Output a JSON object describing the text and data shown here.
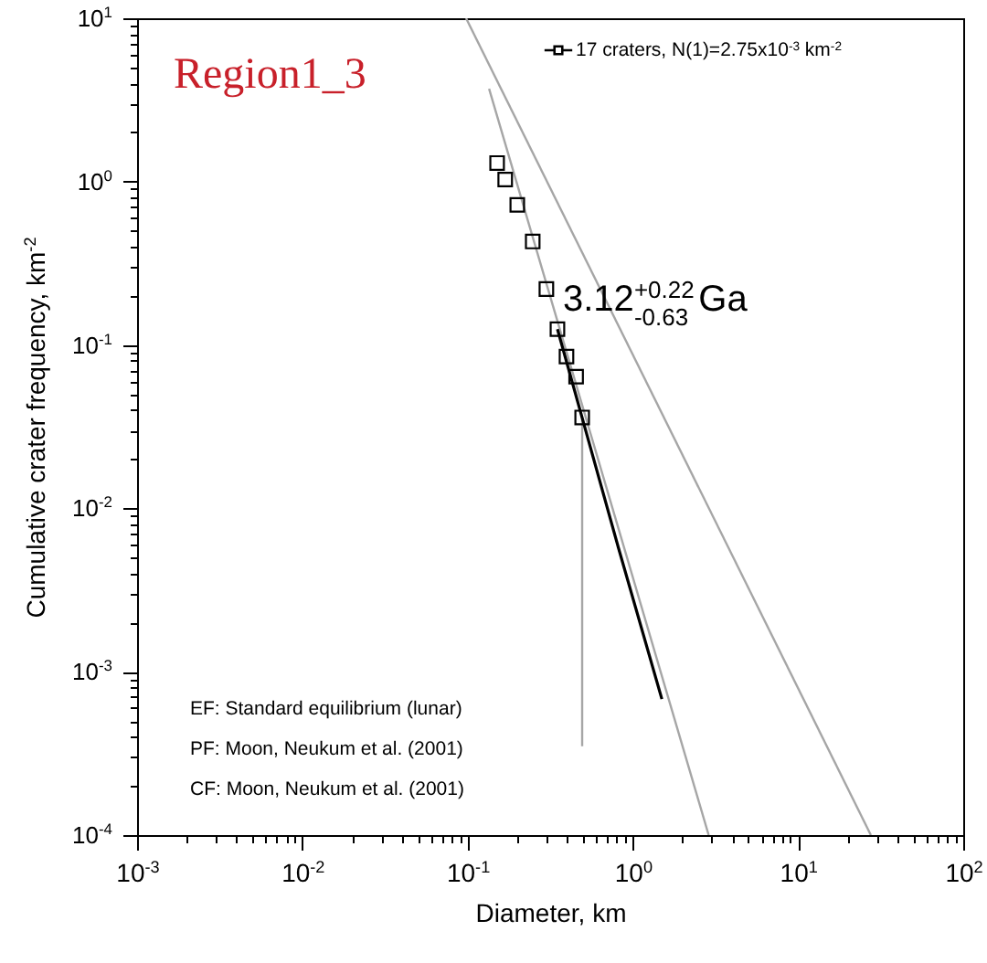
{
  "chart_data": {
    "type": "scatter",
    "xlabel": "Diameter, km",
    "ylabel": "Cumulative crater frequency, km$^{-2}$",
    "log": "xy",
    "xlim": [
      0.001,
      100
    ],
    "ylim": [
      0.0001,
      10
    ],
    "xticks": [
      {
        "value": 0.001,
        "label": "10$^{-3}$"
      },
      {
        "value": 0.002,
        "label": null
      },
      {
        "value": 0.003,
        "label": null
      },
      {
        "value": 0.004,
        "label": null
      },
      {
        "value": 0.005,
        "label": null
      },
      {
        "value": 0.006,
        "label": null
      },
      {
        "value": 0.007,
        "label": null
      },
      {
        "value": 0.008,
        "label": null
      },
      {
        "value": 0.009,
        "label": null
      },
      {
        "value": 0.01,
        "label": "10$^{-2}$"
      },
      {
        "value": 0.02,
        "label": null
      },
      {
        "value": 0.03,
        "label": null
      },
      {
        "value": 0.04,
        "label": null
      },
      {
        "value": 0.05,
        "label": null
      },
      {
        "value": 0.06,
        "label": null
      },
      {
        "value": 0.07,
        "label": null
      },
      {
        "value": 0.08,
        "label": null
      },
      {
        "value": 0.09,
        "label": null
      },
      {
        "value": 0.1,
        "label": "10$^{-1}$"
      },
      {
        "value": 0.2,
        "label": null
      },
      {
        "value": 0.3,
        "label": null
      },
      {
        "value": 0.4,
        "label": null
      },
      {
        "value": 0.5,
        "label": null
      },
      {
        "value": 0.6,
        "label": null
      },
      {
        "value": 0.7,
        "label": null
      },
      {
        "value": 0.8,
        "label": null
      },
      {
        "value": 0.9,
        "label": null
      },
      {
        "value": 1,
        "label": "10$^{0}$"
      },
      {
        "value": 2,
        "label": null
      },
      {
        "value": 3,
        "label": null
      },
      {
        "value": 4,
        "label": null
      },
      {
        "value": 5,
        "label": null
      },
      {
        "value": 6,
        "label": null
      },
      {
        "value": 7,
        "label": null
      },
      {
        "value": 8,
        "label": null
      },
      {
        "value": 9,
        "label": null
      },
      {
        "value": 10,
        "label": "10$^{1}$"
      },
      {
        "value": 20,
        "label": null
      },
      {
        "value": 30,
        "label": null
      },
      {
        "value": 40,
        "label": null
      },
      {
        "value": 50,
        "label": null
      },
      {
        "value": 60,
        "label": null
      },
      {
        "value": 70,
        "label": null
      },
      {
        "value": 80,
        "label": null
      },
      {
        "value": 90,
        "label": null
      },
      {
        "value": 100,
        "label": "10$^{2}$"
      }
    ],
    "yticks": [
      {
        "value": 0.0001,
        "label": "10$^{-4}$"
      },
      {
        "value": 0.0002,
        "label": null
      },
      {
        "value": 0.0003,
        "label": null
      },
      {
        "value": 0.0004,
        "label": null
      },
      {
        "value": 0.0005,
        "label": null
      },
      {
        "value": 0.0006,
        "label": null
      },
      {
        "value": 0.0007,
        "label": null
      },
      {
        "value": 0.0008,
        "label": null
      },
      {
        "value": 0.0009,
        "label": null
      },
      {
        "value": 0.001,
        "label": "10$^{-3}$"
      },
      {
        "value": 0.002,
        "label": null
      },
      {
        "value": 0.003,
        "label": null
      },
      {
        "value": 0.004,
        "label": null
      },
      {
        "value": 0.005,
        "label": null
      },
      {
        "value": 0.006,
        "label": null
      },
      {
        "value": 0.007,
        "label": null
      },
      {
        "value": 0.008,
        "label": null
      },
      {
        "value": 0.009,
        "label": null
      },
      {
        "value": 0.01,
        "label": "10$^{-2}$"
      },
      {
        "value": 0.02,
        "label": null
      },
      {
        "value": 0.03,
        "label": null
      },
      {
        "value": 0.04,
        "label": null
      },
      {
        "value": 0.05,
        "label": null
      },
      {
        "value": 0.06,
        "label": null
      },
      {
        "value": 0.07,
        "label": null
      },
      {
        "value": 0.08,
        "label": null
      },
      {
        "value": 0.09,
        "label": null
      },
      {
        "value": 0.1,
        "label": "10$^{-1}$"
      },
      {
        "value": 0.2,
        "label": null
      },
      {
        "value": 0.3,
        "label": null
      },
      {
        "value": 0.4,
        "label": null
      },
      {
        "value": 0.5,
        "label": null
      },
      {
        "value": 0.6,
        "label": null
      },
      {
        "value": 0.7,
        "label": null
      },
      {
        "value": 0.8,
        "label": null
      },
      {
        "value": 0.9,
        "label": null
      },
      {
        "value": 1,
        "label": "10$^{0}$"
      },
      {
        "value": 2,
        "label": null
      },
      {
        "value": 3,
        "label": null
      },
      {
        "value": 4,
        "label": null
      },
      {
        "value": 5,
        "label": null
      },
      {
        "value": 6,
        "label": null
      },
      {
        "value": 7,
        "label": null
      },
      {
        "value": 8,
        "label": null
      },
      {
        "value": 9,
        "label": null
      },
      {
        "value": 10,
        "label": "10$^{1}$"
      }
    ],
    "grid": false,
    "legend": "top right",
    "line_style": "solid",
    "annotations": [
      "Region1_3",
      "3.12$^{+0.22}$$_{-0.63}$ Ga",
      "EF: Standard equilibrium (lunar)",
      "PF: Moon, Neukum et al. (2001)",
      "CF: Moon, Neukum et al. (2001)"
    ],
    "series": [
      {
        "type": "line",
        "color": "#a6a6a6",
        "x": [
          0.098,
          27.6
        ],
        "values": [
          10,
          0.0001
        ]
      },
      {
        "type": "line",
        "color": "#a6a6a6",
        "x": [
          0.135,
          2.88
        ],
        "values": [
          3.7,
          0.0001
        ]
      },
      {
        "type": "line",
        "color": "#a6a6a6",
        "x": [
          0.494,
          0.494
        ],
        "values": [
          0.036,
          0.00035
        ]
      },
      {
        "type": "line",
        "color": "#000000",
        "x": [
          0.35,
          0.82,
          1.5
        ],
        "values": [
          0.125,
          0.0057,
          0.00068
        ]
      },
      {
        "name": "17 craters, N(1)=2.75x10$^{-3}$ km$^{-2}$",
        "marker": "square",
        "color": "#000000",
        "x": [
          0.151,
          0.169,
          0.2,
          0.248,
          0.3,
          0.35,
          0.397,
          0.454,
          0.494
        ],
        "values": [
          1.3,
          1.03,
          0.72,
          0.43,
          0.22,
          0.125,
          0.085,
          0.064,
          0.036
        ]
      }
    ]
  }
}
